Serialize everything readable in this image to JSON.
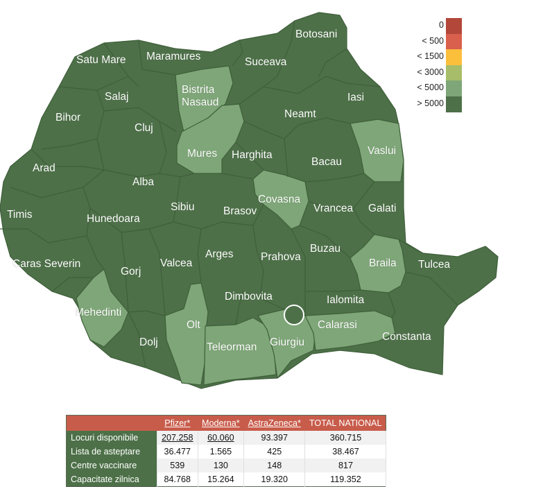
{
  "colors": {
    "dark_green": "#4d7048",
    "light_green": "#7ea678",
    "border": "#3f5f3a",
    "header_red": "#c85c4b"
  },
  "legend": [
    {
      "label": "0",
      "color": "#b2473a"
    },
    {
      "label": "< 500",
      "color": "#d9604c"
    },
    {
      "label": "< 1500",
      "color": "#fbbf3c"
    },
    {
      "label": "< 3000",
      "color": "#a8bd6a"
    },
    {
      "label": "< 5000",
      "color": "#7ea678"
    },
    {
      "label": "> 5000",
      "color": "#4d7048"
    }
  ],
  "counties": {
    "satu_mare": "Satu Mare",
    "maramures": "Maramures",
    "botosani": "Botosani",
    "suceava": "Suceava",
    "salaj": "Salaj",
    "bistrita": "Bistrita",
    "nasaud": "Nasaud",
    "iasi": "Iasi",
    "bihor": "Bihor",
    "cluj": "Cluj",
    "neamt": "Neamt",
    "vaslui": "Vaslui",
    "mures": "Mures",
    "harghita": "Harghita",
    "arad": "Arad",
    "bacau": "Bacau",
    "alba": "Alba",
    "covasna": "Covasna",
    "sibiu": "Sibiu",
    "vrancea": "Vrancea",
    "galati": "Galati",
    "brasov": "Brasov",
    "timis": "Timis",
    "hunedoara": "Hunedoara",
    "arges": "Arges",
    "buzau": "Buzau",
    "prahova": "Prahova",
    "caras_severin": "Caras Severin",
    "braila": "Braila",
    "tulcea": "Tulcea",
    "valcea": "Valcea",
    "gorj": "Gorj",
    "dimbovita": "Dimbovita",
    "mehedinti": "Mehedinti",
    "ialomita": "Ialomita",
    "olt": "Olt",
    "calarasi": "Calarasi",
    "dolj": "Dolj",
    "constanta": "Constanta",
    "teleorman": "Teleorman",
    "giurgiu": "Giurgiu"
  },
  "table": {
    "headers": [
      "Pfizer*",
      "Moderna*",
      "AstraZeneca*",
      "TOTAL NATIONAL"
    ],
    "rows": [
      {
        "label": "Locuri disponibile",
        "values": [
          "207.258",
          "60.060",
          "93.397",
          "360.715"
        ]
      },
      {
        "label": "Lista de asteptare",
        "values": [
          "36.477",
          "1.565",
          "425",
          "38.467"
        ]
      },
      {
        "label": "Centre vaccinare",
        "values": [
          "539",
          "130",
          "148",
          "817"
        ]
      },
      {
        "label": "Capacitate zilnica",
        "values": [
          "84.768",
          "15.264",
          "19.320",
          "119.352"
        ]
      }
    ]
  }
}
